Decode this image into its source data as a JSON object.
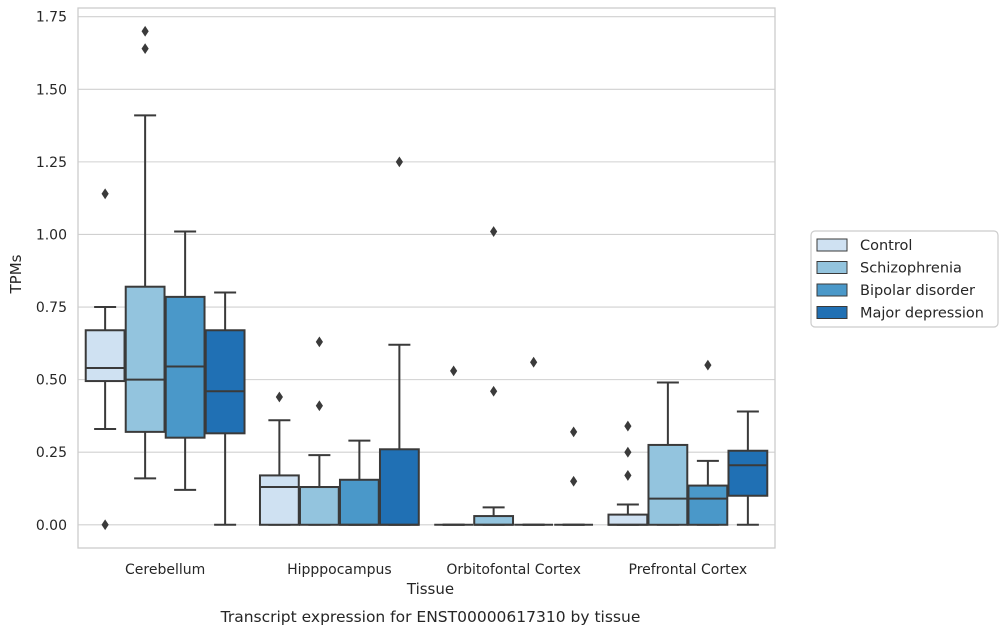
{
  "chart_data": {
    "type": "box",
    "xlabel": "Tissue",
    "ylabel": "TPMs",
    "caption": "Transcript expression for ENST00000617310 by tissue",
    "ylim": [
      -0.08,
      1.78
    ],
    "yticks": [
      "0.00",
      "0.25",
      "0.50",
      "0.75",
      "1.00",
      "1.25",
      "1.50",
      "1.75"
    ],
    "grid": "horizontal",
    "legend_position": "right",
    "categories": [
      "Cerebellum",
      "Hipppocampus",
      "Orbitofontal Cortex",
      "Prefrontal Cortex"
    ],
    "series": [
      {
        "name": "Control",
        "color": "#cfe1f2",
        "boxes": [
          {
            "whislo": 0.33,
            "q1": 0.495,
            "med": 0.54,
            "q3": 0.67,
            "whishi": 0.75,
            "fliers": [
              1.14,
              0.0
            ]
          },
          {
            "whislo": 0.0,
            "q1": 0.0,
            "med": 0.13,
            "q3": 0.17,
            "whishi": 0.36,
            "fliers": [
              0.44
            ]
          },
          {
            "whislo": 0.0,
            "q1": 0.0,
            "med": 0.0,
            "q3": 0.0,
            "whishi": 0.0,
            "fliers": [
              0.53
            ]
          },
          {
            "whislo": 0.0,
            "q1": 0.0,
            "med": 0.0,
            "q3": 0.035,
            "whishi": 0.07,
            "fliers": [
              0.34,
              0.25,
              0.17
            ]
          }
        ]
      },
      {
        "name": "Schizophrenia",
        "color": "#93c4de",
        "boxes": [
          {
            "whislo": 0.16,
            "q1": 0.32,
            "med": 0.5,
            "q3": 0.82,
            "whishi": 1.41,
            "fliers": [
              1.7,
              1.64
            ]
          },
          {
            "whislo": 0.0,
            "q1": 0.0,
            "med": 0.13,
            "q3": 0.13,
            "whishi": 0.24,
            "fliers": [
              0.63,
              0.41
            ]
          },
          {
            "whislo": 0.0,
            "q1": 0.0,
            "med": 0.0,
            "q3": 0.03,
            "whishi": 0.06,
            "fliers": [
              1.01,
              0.46
            ]
          },
          {
            "whislo": 0.0,
            "q1": 0.0,
            "med": 0.09,
            "q3": 0.275,
            "whishi": 0.49,
            "fliers": []
          }
        ]
      },
      {
        "name": "Bipolar disorder",
        "color": "#4a98c9",
        "boxes": [
          {
            "whislo": 0.12,
            "q1": 0.3,
            "med": 0.545,
            "q3": 0.785,
            "whishi": 1.01,
            "fliers": []
          },
          {
            "whislo": 0.0,
            "q1": 0.0,
            "med": 0.0,
            "q3": 0.155,
            "whishi": 0.29,
            "fliers": []
          },
          {
            "whislo": 0.0,
            "q1": 0.0,
            "med": 0.0,
            "q3": 0.0,
            "whishi": 0.0,
            "fliers": [
              0.56
            ]
          },
          {
            "whislo": 0.0,
            "q1": 0.0,
            "med": 0.09,
            "q3": 0.135,
            "whishi": 0.22,
            "fliers": [
              0.55
            ]
          }
        ]
      },
      {
        "name": "Major depression",
        "color": "#2070b4",
        "boxes": [
          {
            "whislo": 0.0,
            "q1": 0.315,
            "med": 0.46,
            "q3": 0.67,
            "whishi": 0.8,
            "fliers": []
          },
          {
            "whislo": 0.0,
            "q1": 0.0,
            "med": 0.0,
            "q3": 0.26,
            "whishi": 0.62,
            "fliers": [
              1.25
            ]
          },
          {
            "whislo": 0.0,
            "q1": 0.0,
            "med": 0.0,
            "q3": 0.0,
            "whishi": 0.0,
            "fliers": [
              0.32,
              0.15
            ]
          },
          {
            "whislo": 0.0,
            "q1": 0.1,
            "med": 0.205,
            "q3": 0.255,
            "whishi": 0.39,
            "fliers": []
          }
        ]
      }
    ]
  }
}
